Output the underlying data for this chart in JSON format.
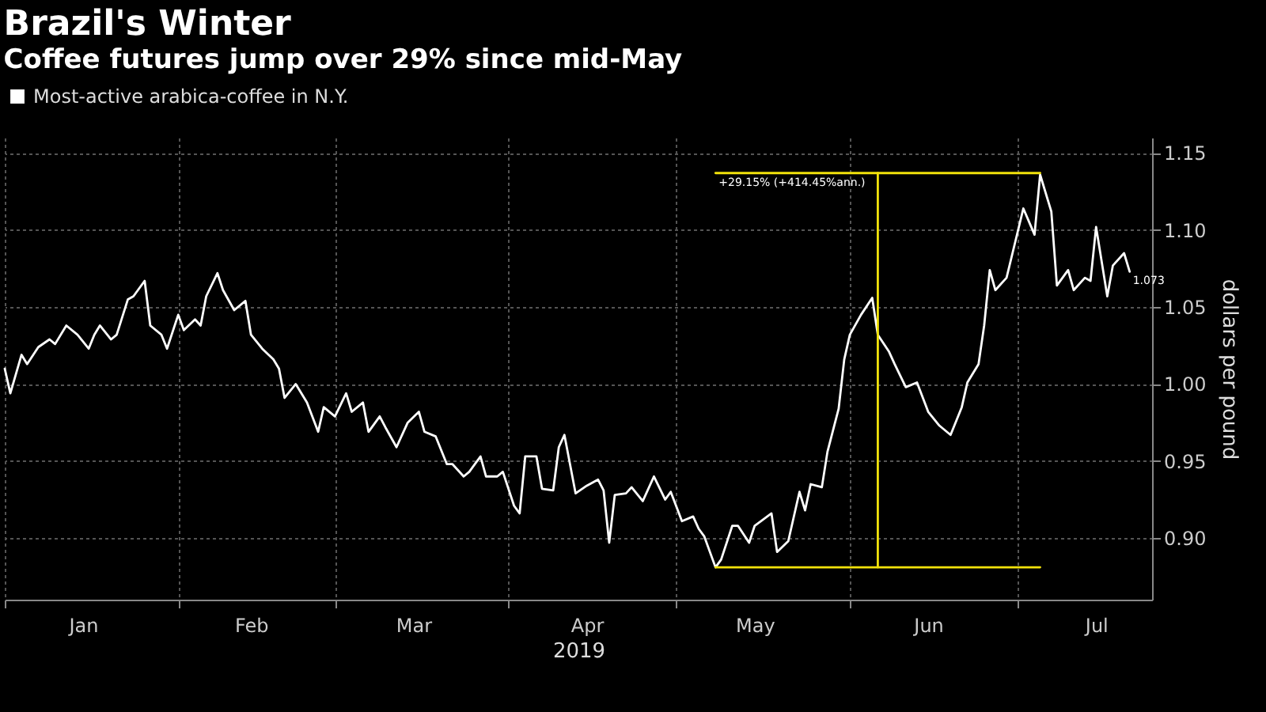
{
  "chart_data": {
    "type": "line",
    "title": "Brazil's Winter",
    "subtitle": "Coffee futures jump over 29% since mid-May",
    "xlabel": "2019",
    "ylabel": "dollars per pound",
    "xlim": [
      "2019-01-01",
      "2019-07-25"
    ],
    "xticks": [
      {
        "value": "2019-01-01",
        "label": null
      },
      {
        "value": "2019-01-15",
        "label": "Jan"
      },
      {
        "value": "2019-02-01",
        "label": null
      },
      {
        "value": "2019-02-14",
        "label": "Feb"
      },
      {
        "value": "2019-03-01",
        "label": null
      },
      {
        "value": "2019-03-15",
        "label": "Mar"
      },
      {
        "value": "2019-04-01",
        "label": null
      },
      {
        "value": "2019-04-15",
        "label": "Apr"
      },
      {
        "value": "2019-05-01",
        "label": null
      },
      {
        "value": "2019-05-15",
        "label": "May"
      },
      {
        "value": "2019-06-01",
        "label": null
      },
      {
        "value": "2019-06-15",
        "label": "Jun"
      },
      {
        "value": "2019-07-01",
        "label": null
      },
      {
        "value": "2019-07-15",
        "label": "Jul"
      }
    ],
    "ylim": [
      0.86,
      1.16
    ],
    "yticks": [
      {
        "value": 0.9,
        "label": "0.90"
      },
      0.95,
      {
        "value": 1.0,
        "label": "1.00"
      },
      1.05,
      {
        "value": 1.1,
        "label": "1.10"
      },
      1.15
    ],
    "grid": true,
    "legend": "top left",
    "series": [
      {
        "name": "Most-active arabica-coffee in N.Y.",
        "color": "#ffffff",
        "x": [
          "2019-01-01",
          "2019-01-02",
          "2019-01-04",
          "2019-01-05",
          "2019-01-07",
          "2019-01-09",
          "2019-01-10",
          "2019-01-12",
          "2019-01-14",
          "2019-01-16",
          "2019-01-17",
          "2019-01-18",
          "2019-01-20",
          "2019-01-21",
          "2019-01-23",
          "2019-01-24",
          "2019-01-26",
          "2019-01-27",
          "2019-01-29",
          "2019-01-30",
          "2019-02-01",
          "2019-02-02",
          "2019-02-04",
          "2019-02-05",
          "2019-02-06",
          "2019-02-08",
          "2019-02-09",
          "2019-02-11",
          "2019-02-13",
          "2019-02-14",
          "2019-02-16",
          "2019-02-18",
          "2019-02-19",
          "2019-02-20",
          "2019-02-22",
          "2019-02-24",
          "2019-02-26",
          "2019-02-27",
          "2019-03-01",
          "2019-03-03",
          "2019-03-04",
          "2019-03-06",
          "2019-03-07",
          "2019-03-09",
          "2019-03-10",
          "2019-03-12",
          "2019-03-14",
          "2019-03-16",
          "2019-03-17",
          "2019-03-19",
          "2019-03-21",
          "2019-03-22",
          "2019-03-24",
          "2019-03-25",
          "2019-03-27",
          "2019-03-28",
          "2019-03-30",
          "2019-03-31",
          "2019-04-02",
          "2019-04-03",
          "2019-04-04",
          "2019-04-06",
          "2019-04-07",
          "2019-04-09",
          "2019-04-10",
          "2019-04-11",
          "2019-04-13",
          "2019-04-15",
          "2019-04-17",
          "2019-04-18",
          "2019-04-19",
          "2019-04-20",
          "2019-04-22",
          "2019-04-23",
          "2019-04-25",
          "2019-04-27",
          "2019-04-29",
          "2019-04-30",
          "2019-05-02",
          "2019-05-04",
          "2019-05-05",
          "2019-05-06",
          "2019-05-08",
          "2019-05-09",
          "2019-05-11",
          "2019-05-12",
          "2019-05-14",
          "2019-05-15",
          "2019-05-18",
          "2019-05-19",
          "2019-05-21",
          "2019-05-23",
          "2019-05-24",
          "2019-05-25",
          "2019-05-27",
          "2019-05-28",
          "2019-05-30",
          "2019-05-31",
          "2019-06-01",
          "2019-06-03",
          "2019-06-05",
          "2019-06-06",
          "2019-06-08",
          "2019-06-09",
          "2019-06-11",
          "2019-06-13",
          "2019-06-15",
          "2019-06-17",
          "2019-06-19",
          "2019-06-21",
          "2019-06-22",
          "2019-06-24",
          "2019-06-25",
          "2019-06-26",
          "2019-06-27",
          "2019-06-29",
          "2019-07-01",
          "2019-07-02",
          "2019-07-04",
          "2019-07-05",
          "2019-07-07",
          "2019-07-08",
          "2019-07-10",
          "2019-07-11",
          "2019-07-13",
          "2019-07-14",
          "2019-07-15",
          "2019-07-17",
          "2019-07-18",
          "2019-07-20",
          "2019-07-21"
        ],
        "values": [
          1.01,
          0.994,
          1.019,
          1.013,
          1.024,
          1.029,
          1.026,
          1.038,
          1.032,
          1.023,
          1.032,
          1.038,
          1.029,
          1.032,
          1.055,
          1.057,
          1.067,
          1.038,
          1.032,
          1.023,
          1.045,
          1.035,
          1.042,
          1.038,
          1.057,
          1.072,
          1.061,
          1.048,
          1.054,
          1.032,
          1.023,
          1.016,
          1.01,
          0.991,
          1.0,
          0.988,
          0.969,
          0.985,
          0.979,
          0.994,
          0.982,
          0.988,
          0.969,
          0.979,
          0.972,
          0.959,
          0.975,
          0.982,
          0.969,
          0.966,
          0.948,
          0.948,
          0.94,
          0.943,
          0.953,
          0.94,
          0.94,
          0.943,
          0.921,
          0.916,
          0.953,
          0.953,
          0.932,
          0.931,
          0.959,
          0.967,
          0.929,
          0.934,
          0.938,
          0.931,
          0.897,
          0.928,
          0.929,
          0.933,
          0.924,
          0.94,
          0.925,
          0.93,
          0.911,
          0.914,
          0.906,
          0.901,
          0.881,
          0.886,
          0.908,
          0.908,
          0.897,
          0.908,
          0.916,
          0.891,
          0.898,
          0.93,
          0.918,
          0.935,
          0.933,
          0.956,
          0.984,
          1.016,
          1.032,
          1.045,
          1.056,
          1.032,
          1.021,
          1.013,
          0.998,
          1.001,
          0.982,
          0.973,
          0.967,
          0.985,
          1.001,
          1.013,
          1.038,
          1.074,
          1.061,
          1.069,
          1.099,
          1.114,
          1.097,
          1.136,
          1.112,
          1.064,
          1.074,
          1.061,
          1.069,
          1.067,
          1.102,
          1.057,
          1.077,
          1.085,
          1.073
        ]
      },
      {
        "color": "#f2e20b",
        "x": [
          "2019-05-08",
          "2019-07-05"
        ],
        "values": [
          1.137,
          1.137
        ]
      },
      {
        "color": "#f2e20b",
        "x": [
          "2019-05-08",
          "2019-07-05"
        ],
        "values": [
          0.881,
          0.881
        ]
      },
      {
        "color": "#f2e20b",
        "x": [
          "2019-06-06",
          "2019-06-06"
        ],
        "values": [
          0.881,
          1.137
        ]
      }
    ],
    "annotations": [
      {
        "text": "+29.15% (+414.45%ann.)",
        "x": "2019-05-08",
        "y": 1.137
      },
      {
        "text": "1.073",
        "x": "2019-07-21",
        "y": 1.073
      }
    ]
  }
}
